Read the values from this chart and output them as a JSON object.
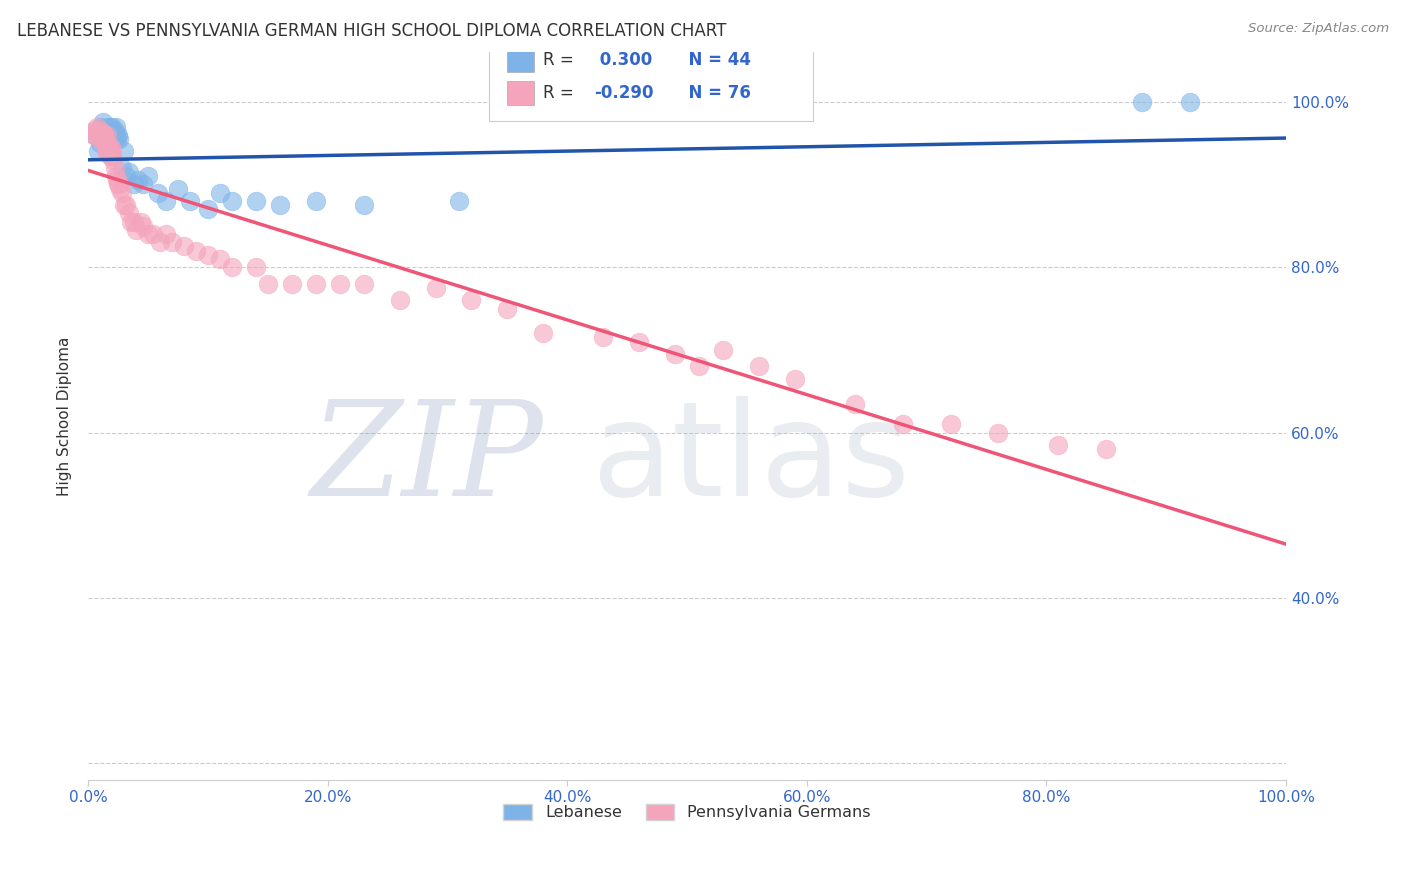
{
  "title": "LEBANESE VS PENNSYLVANIA GERMAN HIGH SCHOOL DIPLOMA CORRELATION CHART",
  "source": "Source: ZipAtlas.com",
  "ylabel": "High School Diploma",
  "xlabel": "",
  "xlim": [
    0.0,
    1.0
  ],
  "ylim": [
    0.18,
    1.06
  ],
  "xtick_positions": [
    0.0,
    0.2,
    0.4,
    0.6,
    0.8,
    1.0
  ],
  "xtick_labels": [
    "0.0%",
    "20.0%",
    "40.0%",
    "60.0%",
    "80.0%",
    "100.0%"
  ],
  "ytick_positions": [
    0.4,
    0.6,
    0.8,
    1.0
  ],
  "ytick_labels": [
    "40.0%",
    "60.0%",
    "80.0%",
    "100.0%"
  ],
  "legend_label1": "Lebanese",
  "legend_label2": "Pennsylvania Germans",
  "R1": 0.3,
  "N1": 44,
  "R2": -0.29,
  "N2": 76,
  "blue_color": "#7EB3E8",
  "pink_color": "#F4A4BB",
  "trendline_blue": "#2255AA",
  "trendline_pink": "#EE5577",
  "watermark_zip": "ZIP",
  "watermark_atlas": "atlas",
  "watermark_color_zip": "#8899BB",
  "watermark_color_atlas": "#AABBCC",
  "blue_points_x": [
    0.005,
    0.008,
    0.01,
    0.01,
    0.012,
    0.013,
    0.014,
    0.015,
    0.016,
    0.017,
    0.018,
    0.018,
    0.019,
    0.02,
    0.02,
    0.021,
    0.022,
    0.023,
    0.023,
    0.024,
    0.025,
    0.026,
    0.028,
    0.03,
    0.032,
    0.034,
    0.038,
    0.042,
    0.046,
    0.05,
    0.058,
    0.065,
    0.075,
    0.085,
    0.1,
    0.11,
    0.12,
    0.14,
    0.16,
    0.19,
    0.23,
    0.31,
    0.88,
    0.92
  ],
  "blue_points_y": [
    0.96,
    0.94,
    0.97,
    0.95,
    0.975,
    0.965,
    0.96,
    0.97,
    0.955,
    0.965,
    0.97,
    0.96,
    0.955,
    0.97,
    0.96,
    0.955,
    0.965,
    0.97,
    0.96,
    0.955,
    0.96,
    0.955,
    0.92,
    0.94,
    0.91,
    0.915,
    0.9,
    0.905,
    0.9,
    0.91,
    0.89,
    0.88,
    0.895,
    0.88,
    0.87,
    0.89,
    0.88,
    0.88,
    0.875,
    0.88,
    0.875,
    0.88,
    1.0,
    1.0
  ],
  "pink_points_x": [
    0.004,
    0.005,
    0.006,
    0.007,
    0.008,
    0.009,
    0.009,
    0.01,
    0.01,
    0.011,
    0.011,
    0.012,
    0.012,
    0.013,
    0.013,
    0.014,
    0.015,
    0.015,
    0.016,
    0.016,
    0.017,
    0.018,
    0.018,
    0.019,
    0.02,
    0.02,
    0.021,
    0.022,
    0.023,
    0.024,
    0.025,
    0.026,
    0.027,
    0.028,
    0.03,
    0.032,
    0.034,
    0.036,
    0.038,
    0.04,
    0.044,
    0.046,
    0.05,
    0.054,
    0.06,
    0.065,
    0.07,
    0.08,
    0.09,
    0.1,
    0.11,
    0.12,
    0.14,
    0.15,
    0.17,
    0.19,
    0.21,
    0.23,
    0.26,
    0.29,
    0.32,
    0.35,
    0.38,
    0.43,
    0.46,
    0.49,
    0.51,
    0.53,
    0.56,
    0.59,
    0.64,
    0.68,
    0.72,
    0.76,
    0.81,
    0.85
  ],
  "pink_points_y": [
    0.965,
    0.96,
    0.965,
    0.97,
    0.96,
    0.96,
    0.965,
    0.96,
    0.955,
    0.965,
    0.96,
    0.96,
    0.955,
    0.96,
    0.96,
    0.955,
    0.95,
    0.94,
    0.94,
    0.96,
    0.945,
    0.94,
    0.935,
    0.945,
    0.935,
    0.94,
    0.93,
    0.92,
    0.91,
    0.905,
    0.9,
    0.9,
    0.895,
    0.89,
    0.875,
    0.875,
    0.865,
    0.855,
    0.855,
    0.845,
    0.855,
    0.85,
    0.84,
    0.84,
    0.83,
    0.84,
    0.83,
    0.825,
    0.82,
    0.815,
    0.81,
    0.8,
    0.8,
    0.78,
    0.78,
    0.78,
    0.78,
    0.78,
    0.76,
    0.775,
    0.76,
    0.75,
    0.72,
    0.715,
    0.71,
    0.695,
    0.68,
    0.7,
    0.68,
    0.665,
    0.635,
    0.61,
    0.61,
    0.6,
    0.585,
    0.58
  ]
}
